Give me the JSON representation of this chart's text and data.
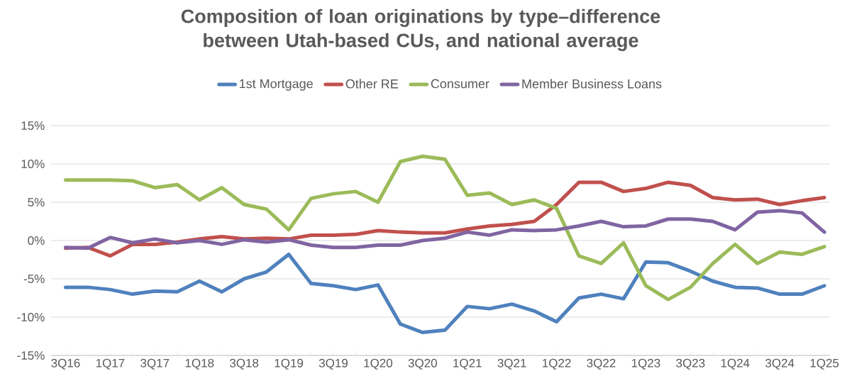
{
  "chart_data": {
    "type": "line",
    "title": "Composition of loan originations by type–difference between Utah-based CUs, and national average",
    "categories": [
      "3Q16",
      null,
      "1Q17",
      null,
      "3Q17",
      null,
      "1Q18",
      null,
      "3Q18",
      null,
      "1Q19",
      null,
      "3Q19",
      null,
      "1Q20",
      null,
      "3Q20",
      null,
      "1Q21",
      null,
      "3Q21",
      null,
      "1Q22",
      null,
      "3Q22",
      null,
      "1Q23",
      null,
      "3Q23",
      null,
      "1Q24",
      null,
      "3Q24",
      null,
      "1Q25"
    ],
    "series": [
      {
        "name": "1st Mortgage",
        "color": "#4f81bd",
        "values": [
          -6.1,
          -6.1,
          -6.4,
          -7.0,
          -6.6,
          -6.7,
          -5.3,
          -6.7,
          -5.0,
          -4.1,
          -1.8,
          -5.6,
          -5.9,
          -6.4,
          -5.8,
          -10.9,
          -12.0,
          -11.7,
          -8.6,
          -8.9,
          -8.3,
          -9.2,
          -10.6,
          -7.5,
          -7.0,
          -7.6,
          -2.8,
          -2.9,
          -4.0,
          -5.3,
          -6.1,
          -6.2,
          -7.0,
          -7.0,
          -5.9
        ]
      },
      {
        "name": "Other RE",
        "color": "#c0504d",
        "values": [
          -1.0,
          -0.9,
          -2.0,
          -0.5,
          -0.5,
          -0.2,
          0.2,
          0.5,
          0.2,
          0.3,
          0.2,
          0.7,
          0.7,
          0.8,
          1.3,
          1.1,
          1.0,
          1.0,
          1.5,
          1.9,
          2.1,
          2.5,
          4.7,
          7.6,
          7.6,
          6.4,
          6.8,
          7.6,
          7.2,
          5.6,
          5.3,
          5.4,
          4.7,
          5.2,
          5.6
        ]
      },
      {
        "name": "Consumer",
        "color": "#9bbb59",
        "values": [
          7.9,
          7.9,
          7.9,
          7.8,
          6.9,
          7.3,
          5.3,
          6.9,
          4.7,
          4.1,
          1.4,
          5.5,
          6.1,
          6.4,
          5.0,
          10.3,
          11.0,
          10.6,
          5.9,
          6.2,
          4.7,
          5.3,
          4.2,
          -2.0,
          -3.0,
          -0.3,
          -5.9,
          -7.7,
          -6.1,
          -3.0,
          -0.5,
          -3.0,
          -1.5,
          -1.8,
          -0.8
        ]
      },
      {
        "name": "Member Business Loans",
        "color": "#8064a2",
        "values": [
          -0.9,
          -1.0,
          0.4,
          -0.3,
          0.2,
          -0.3,
          0.0,
          -0.5,
          0.1,
          -0.2,
          0.1,
          -0.6,
          -0.9,
          -0.9,
          -0.6,
          -0.6,
          0.0,
          0.3,
          1.1,
          0.7,
          1.4,
          1.3,
          1.4,
          1.9,
          2.5,
          1.8,
          1.9,
          2.8,
          2.8,
          2.5,
          1.4,
          3.7,
          3.9,
          3.6,
          1.1
        ]
      }
    ],
    "ylim": [
      -15,
      15
    ],
    "yticks": [
      {
        "value": -15,
        "label": "-15%"
      },
      {
        "value": -10,
        "label": "-10%"
      },
      {
        "value": -5,
        "label": "-5%"
      },
      {
        "value": 0,
        "label": "0%"
      },
      {
        "value": 5,
        "label": "5%"
      },
      {
        "value": 10,
        "label": "10%"
      },
      {
        "value": 15,
        "label": "15%"
      }
    ],
    "grid": "y",
    "legend": "top",
    "marker": "none",
    "line_style": "solid"
  }
}
